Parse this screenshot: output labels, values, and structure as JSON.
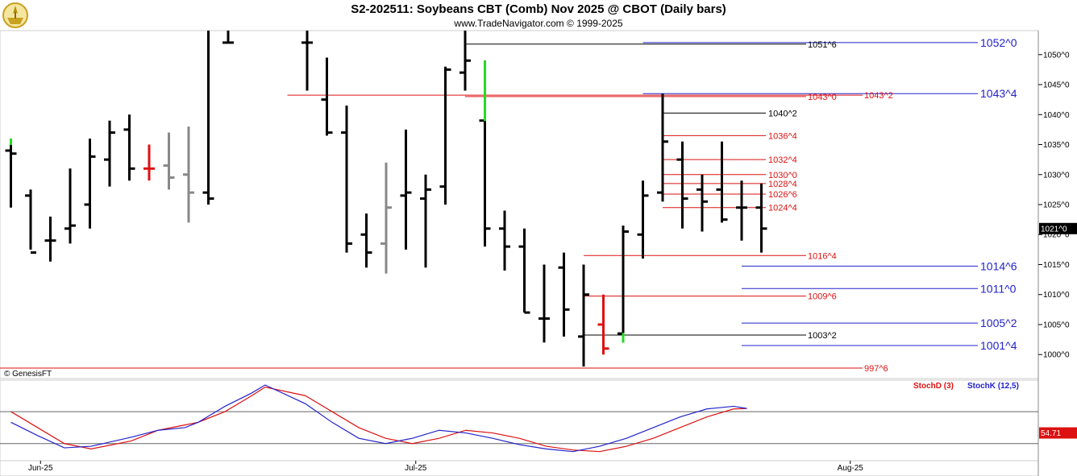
{
  "header": {
    "title": "S2-202511:  Soybeans CBT (Comb) Nov 2025 @ CBOT  (Daily bars)",
    "subtitle": "www.TradeNavigator.com © 1999-2025"
  },
  "copyright": "© GenesisFT",
  "colors": {
    "bar_up": "#000000",
    "bar_high": "#22dd22",
    "bar_low": "#dd1111",
    "bar_gray": "#888888",
    "red_level": "#dd1111",
    "blue_level": "#2222cc",
    "black_level": "#000000",
    "stochD": "#dd1111",
    "stochK": "#2222cc",
    "last_price_bg": "#000000",
    "stoch_label_bg": "#dd1111"
  },
  "chart_data": [
    {
      "type": "ohlc",
      "title": "S2-202511:  Soybeans CBT (Comb) Nov 2025 @ CBOT  (Daily bars)",
      "y_range": [
        996,
        1054
      ],
      "y_ticks": [
        "1000^0",
        "1005^0",
        "1010^0",
        "1015^0",
        "1020^0",
        "1025^0",
        "1030^0",
        "1035^0",
        "1040^0",
        "1045^0",
        "1050^0"
      ],
      "y_tick_values": [
        1000,
        1005,
        1010,
        1015,
        1020,
        1025,
        1030,
        1035,
        1040,
        1045,
        1050
      ],
      "x_labels": [
        "Jun-25",
        "Jul-25",
        "Aug-25"
      ],
      "x_label_positions": [
        1.5,
        20.5,
        42.5
      ],
      "x_range": [
        0,
        54
      ],
      "last_price_label": "1021^0",
      "last_price": 1021,
      "bars": [
        {
          "i": 0,
          "o": 1034,
          "h": 1036,
          "l": 1024.5,
          "c": 1033.5,
          "tag": "green-top"
        },
        {
          "i": 1,
          "o": 1026.5,
          "h": 1027.5,
          "l": 1017.5,
          "c": 1017
        },
        {
          "i": 2,
          "o": 1019,
          "h": 1023,
          "l": 1015.5,
          "c": 1019
        },
        {
          "i": 3,
          "o": 1021,
          "h": 1031,
          "l": 1018.5,
          "c": 1021.5
        },
        {
          "i": 4,
          "o": 1025,
          "h": 1036,
          "l": 1021,
          "c": 1033
        },
        {
          "i": 5,
          "o": 1032.5,
          "h": 1039,
          "l": 1028,
          "c": 1037
        },
        {
          "i": 6,
          "o": 1037.5,
          "h": 1040,
          "l": 1029,
          "c": 1031
        },
        {
          "i": 7,
          "o": 1031,
          "h": 1035,
          "l": 1029,
          "c": 1031,
          "tag": "red"
        },
        {
          "i": 8,
          "o": 1031.5,
          "h": 1037,
          "l": 1027.5,
          "c": 1029.5,
          "tag": "gray"
        },
        {
          "i": 9,
          "o": 1030,
          "h": 1038,
          "l": 1022,
          "c": 1027,
          "tag": "gray"
        },
        {
          "i": 10,
          "o": 1027,
          "h": 1054,
          "l": 1025,
          "c": 1026
        },
        {
          "i": 11,
          "o": 1052,
          "h": 1054,
          "l": 1052,
          "c": 1052
        },
        {
          "i": 15,
          "o": 1052,
          "h": 1054,
          "l": 1044,
          "c": 1052
        },
        {
          "i": 16,
          "o": 1042.5,
          "h": 1049.5,
          "l": 1036.5,
          "c": 1037
        },
        {
          "i": 17,
          "o": 1037,
          "h": 1041.5,
          "l": 1017,
          "c": 1018.5
        },
        {
          "i": 18,
          "o": 1020,
          "h": 1023.5,
          "l": 1014.5,
          "c": 1017
        },
        {
          "i": 19,
          "o": 1018.5,
          "h": 1032,
          "l": 1013.5,
          "c": 1024.5,
          "tag": "gray"
        },
        {
          "i": 20,
          "o": 1026.5,
          "h": 1037.5,
          "l": 1017.5,
          "c": 1027
        },
        {
          "i": 21,
          "o": 1026,
          "h": 1030,
          "l": 1014.5,
          "c": 1027.5
        },
        {
          "i": 22,
          "o": 1028,
          "h": 1048,
          "l": 1025,
          "c": 1047.5
        },
        {
          "i": 23,
          "o": 1047,
          "h": 1054,
          "l": 1044,
          "c": 1049
        },
        {
          "i": 24,
          "o": 1039,
          "h": 1049,
          "l": 1018,
          "c": 1021,
          "tag": "green-top"
        },
        {
          "i": 25,
          "o": 1021,
          "h": 1024,
          "l": 1014,
          "c": 1018
        },
        {
          "i": 26,
          "o": 1018,
          "h": 1021,
          "l": 1007,
          "c": 1007
        },
        {
          "i": 27,
          "o": 1006,
          "h": 1015,
          "l": 1002,
          "c": 1006
        },
        {
          "i": 28,
          "o": 1014.5,
          "h": 1017,
          "l": 1003,
          "c": 1007.5
        },
        {
          "i": 29,
          "o": 1003,
          "h": 1015,
          "l": 998,
          "c": 1010
        },
        {
          "i": 30,
          "o": 1005,
          "h": 1010,
          "l": 1000,
          "c": 1001,
          "tag": "red"
        },
        {
          "i": 31,
          "o": 1003.5,
          "h": 1021.5,
          "l": 1002,
          "c": 1020.5,
          "tag": "green-bottom"
        },
        {
          "i": 32,
          "o": 1020,
          "h": 1029,
          "l": 1016,
          "c": 1026.5
        },
        {
          "i": 33,
          "o": 1027,
          "h": 1043.5,
          "l": 1025.5,
          "c": 1035.5
        },
        {
          "i": 34,
          "o": 1032.5,
          "h": 1035.5,
          "l": 1021,
          "c": 1026
        },
        {
          "i": 35,
          "o": 1027.5,
          "h": 1030,
          "l": 1020.5,
          "c": 1025.5
        },
        {
          "i": 36,
          "o": 1027.5,
          "h": 1035.5,
          "l": 1022,
          "c": 1022.5
        },
        {
          "i": 37,
          "o": 1024.5,
          "h": 1029,
          "l": 1019,
          "c": 1024.5
        },
        {
          "i": 38,
          "o": 1024.5,
          "h": 1028.5,
          "l": 1017,
          "c": 1021
        }
      ],
      "levels": [
        {
          "label": "1052^0",
          "value": 1052,
          "color": "blue",
          "from": 32,
          "label_pos": "right"
        },
        {
          "label": "1051^6",
          "value": 1051.75,
          "color": "black",
          "from": 23,
          "label_pos": "mid"
        },
        {
          "label": "1043^4",
          "value": 1043.5,
          "color": "blue",
          "from": 32,
          "label_pos": "right"
        },
        {
          "label": "1043^2",
          "value": 1043.25,
          "color": "red",
          "from": 14,
          "label_pos": "far"
        },
        {
          "label": "1043^0",
          "value": 1043,
          "color": "red",
          "from": 23,
          "label_pos": "mid"
        },
        {
          "label": "1040^2",
          "value": 1040.25,
          "color": "black",
          "from": 33,
          "label_pos": "near"
        },
        {
          "label": "1036^4",
          "value": 1036.5,
          "color": "red",
          "from": 33,
          "label_pos": "near"
        },
        {
          "label": "1032^4",
          "value": 1032.5,
          "color": "red",
          "from": 33,
          "label_pos": "near"
        },
        {
          "label": "1030^0",
          "value": 1030,
          "color": "red",
          "from": 33,
          "label_pos": "near"
        },
        {
          "label": "1028^4",
          "value": 1028.5,
          "color": "red",
          "from": 33,
          "label_pos": "near"
        },
        {
          "label": "1026^6",
          "value": 1026.75,
          "color": "red",
          "from": 33,
          "label_pos": "near"
        },
        {
          "label": "1024^4",
          "value": 1024.5,
          "color": "red",
          "from": 33,
          "label_pos": "near"
        },
        {
          "label": "1016^4",
          "value": 1016.5,
          "color": "red",
          "from": 29,
          "label_pos": "mid"
        },
        {
          "label": "1014^6",
          "value": 1014.75,
          "color": "blue",
          "from": 37,
          "label_pos": "right"
        },
        {
          "label": "1011^0",
          "value": 1011,
          "color": "blue",
          "from": 37,
          "label_pos": "right"
        },
        {
          "label": "1009^6",
          "value": 1009.75,
          "color": "red",
          "from": 29,
          "label_pos": "mid"
        },
        {
          "label": "1005^2",
          "value": 1005.25,
          "color": "blue",
          "from": 37,
          "label_pos": "right"
        },
        {
          "label": "1003^2",
          "value": 1003.25,
          "color": "black",
          "from": 29,
          "label_pos": "mid"
        },
        {
          "label": "1001^4",
          "value": 1001.5,
          "color": "blue",
          "from": 37,
          "label_pos": "right"
        },
        {
          "label": "997^6",
          "value": 997.75,
          "color": "red",
          "from": -1,
          "label_pos": "far"
        }
      ]
    },
    {
      "type": "line",
      "series": [
        {
          "name": "StochD (3)",
          "color": "red",
          "points": [
            [
              0,
              80
            ],
            [
              2,
              50
            ],
            [
              4,
              20
            ],
            [
              6,
              10
            ],
            [
              9,
              25
            ],
            [
              11,
              45
            ],
            [
              13,
              55
            ],
            [
              14,
              60
            ],
            [
              16,
              80
            ],
            [
              18,
              110
            ],
            [
              19,
              126
            ],
            [
              22,
              110
            ],
            [
              24,
              80
            ],
            [
              26,
              50
            ],
            [
              28,
              30
            ],
            [
              30,
              20
            ],
            [
              32,
              30
            ],
            [
              34,
              45
            ],
            [
              36,
              40
            ],
            [
              38,
              30
            ],
            [
              40,
              15
            ],
            [
              42,
              8
            ],
            [
              44,
              5
            ],
            [
              46,
              15
            ],
            [
              48,
              30
            ],
            [
              50,
              50
            ],
            [
              52,
              70
            ],
            [
              54,
              85
            ],
            [
              55,
              86
            ]
          ]
        },
        {
          "name": "StochK (12,5)",
          "color": "blue",
          "points": [
            [
              0,
              60
            ],
            [
              2,
              35
            ],
            [
              4,
              12
            ],
            [
              6,
              15
            ],
            [
              9,
              32
            ],
            [
              11,
              45
            ],
            [
              13,
              50
            ],
            [
              14,
              60
            ],
            [
              16,
              90
            ],
            [
              18,
              115
            ],
            [
              19,
              130
            ],
            [
              22,
              95
            ],
            [
              24,
              60
            ],
            [
              26,
              30
            ],
            [
              28,
              20
            ],
            [
              30,
              30
            ],
            [
              32,
              45
            ],
            [
              34,
              40
            ],
            [
              36,
              30
            ],
            [
              38,
              18
            ],
            [
              40,
              10
            ],
            [
              42,
              5
            ],
            [
              44,
              15
            ],
            [
              46,
              30
            ],
            [
              48,
              50
            ],
            [
              50,
              70
            ],
            [
              52,
              85
            ],
            [
              54,
              90
            ],
            [
              55,
              86
            ]
          ]
        }
      ],
      "last_value_label": "54.71"
    }
  ]
}
